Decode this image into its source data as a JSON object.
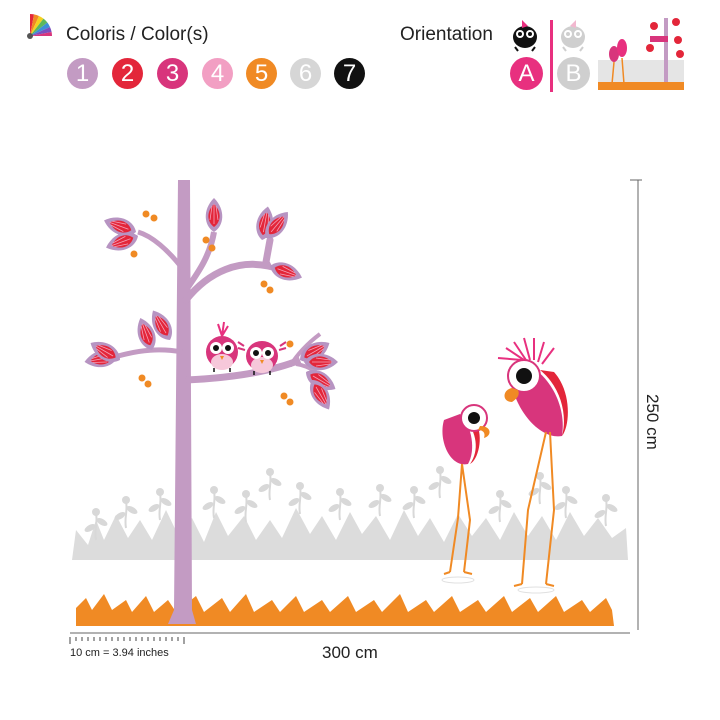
{
  "header": {
    "colors_title": "Coloris / Color(s)",
    "orientation_title": "Orientation"
  },
  "swatches": [
    {
      "label": "1",
      "color": "#c39bc3"
    },
    {
      "label": "2",
      "color": "#e3263a"
    },
    {
      "label": "3",
      "color": "#d8357c"
    },
    {
      "label": "4",
      "color": "#f29fc3"
    },
    {
      "label": "5",
      "color": "#f08a24"
    },
    {
      "label": "6",
      "color": "#d6d6d6"
    },
    {
      "label": "7",
      "color": "#111111"
    }
  ],
  "orientation": {
    "option_a": {
      "label": "A",
      "color": "#e8307f"
    },
    "option_b": {
      "label": "B",
      "color": "#cfcfcf"
    },
    "divider_color": "#e8307f"
  },
  "dimensions": {
    "width": "300 cm",
    "height": "250 cm",
    "scale": "10 cm = 3.94 inches"
  },
  "icons": {
    "palette": "color-fan-icon",
    "orientation": "bird-icon"
  }
}
